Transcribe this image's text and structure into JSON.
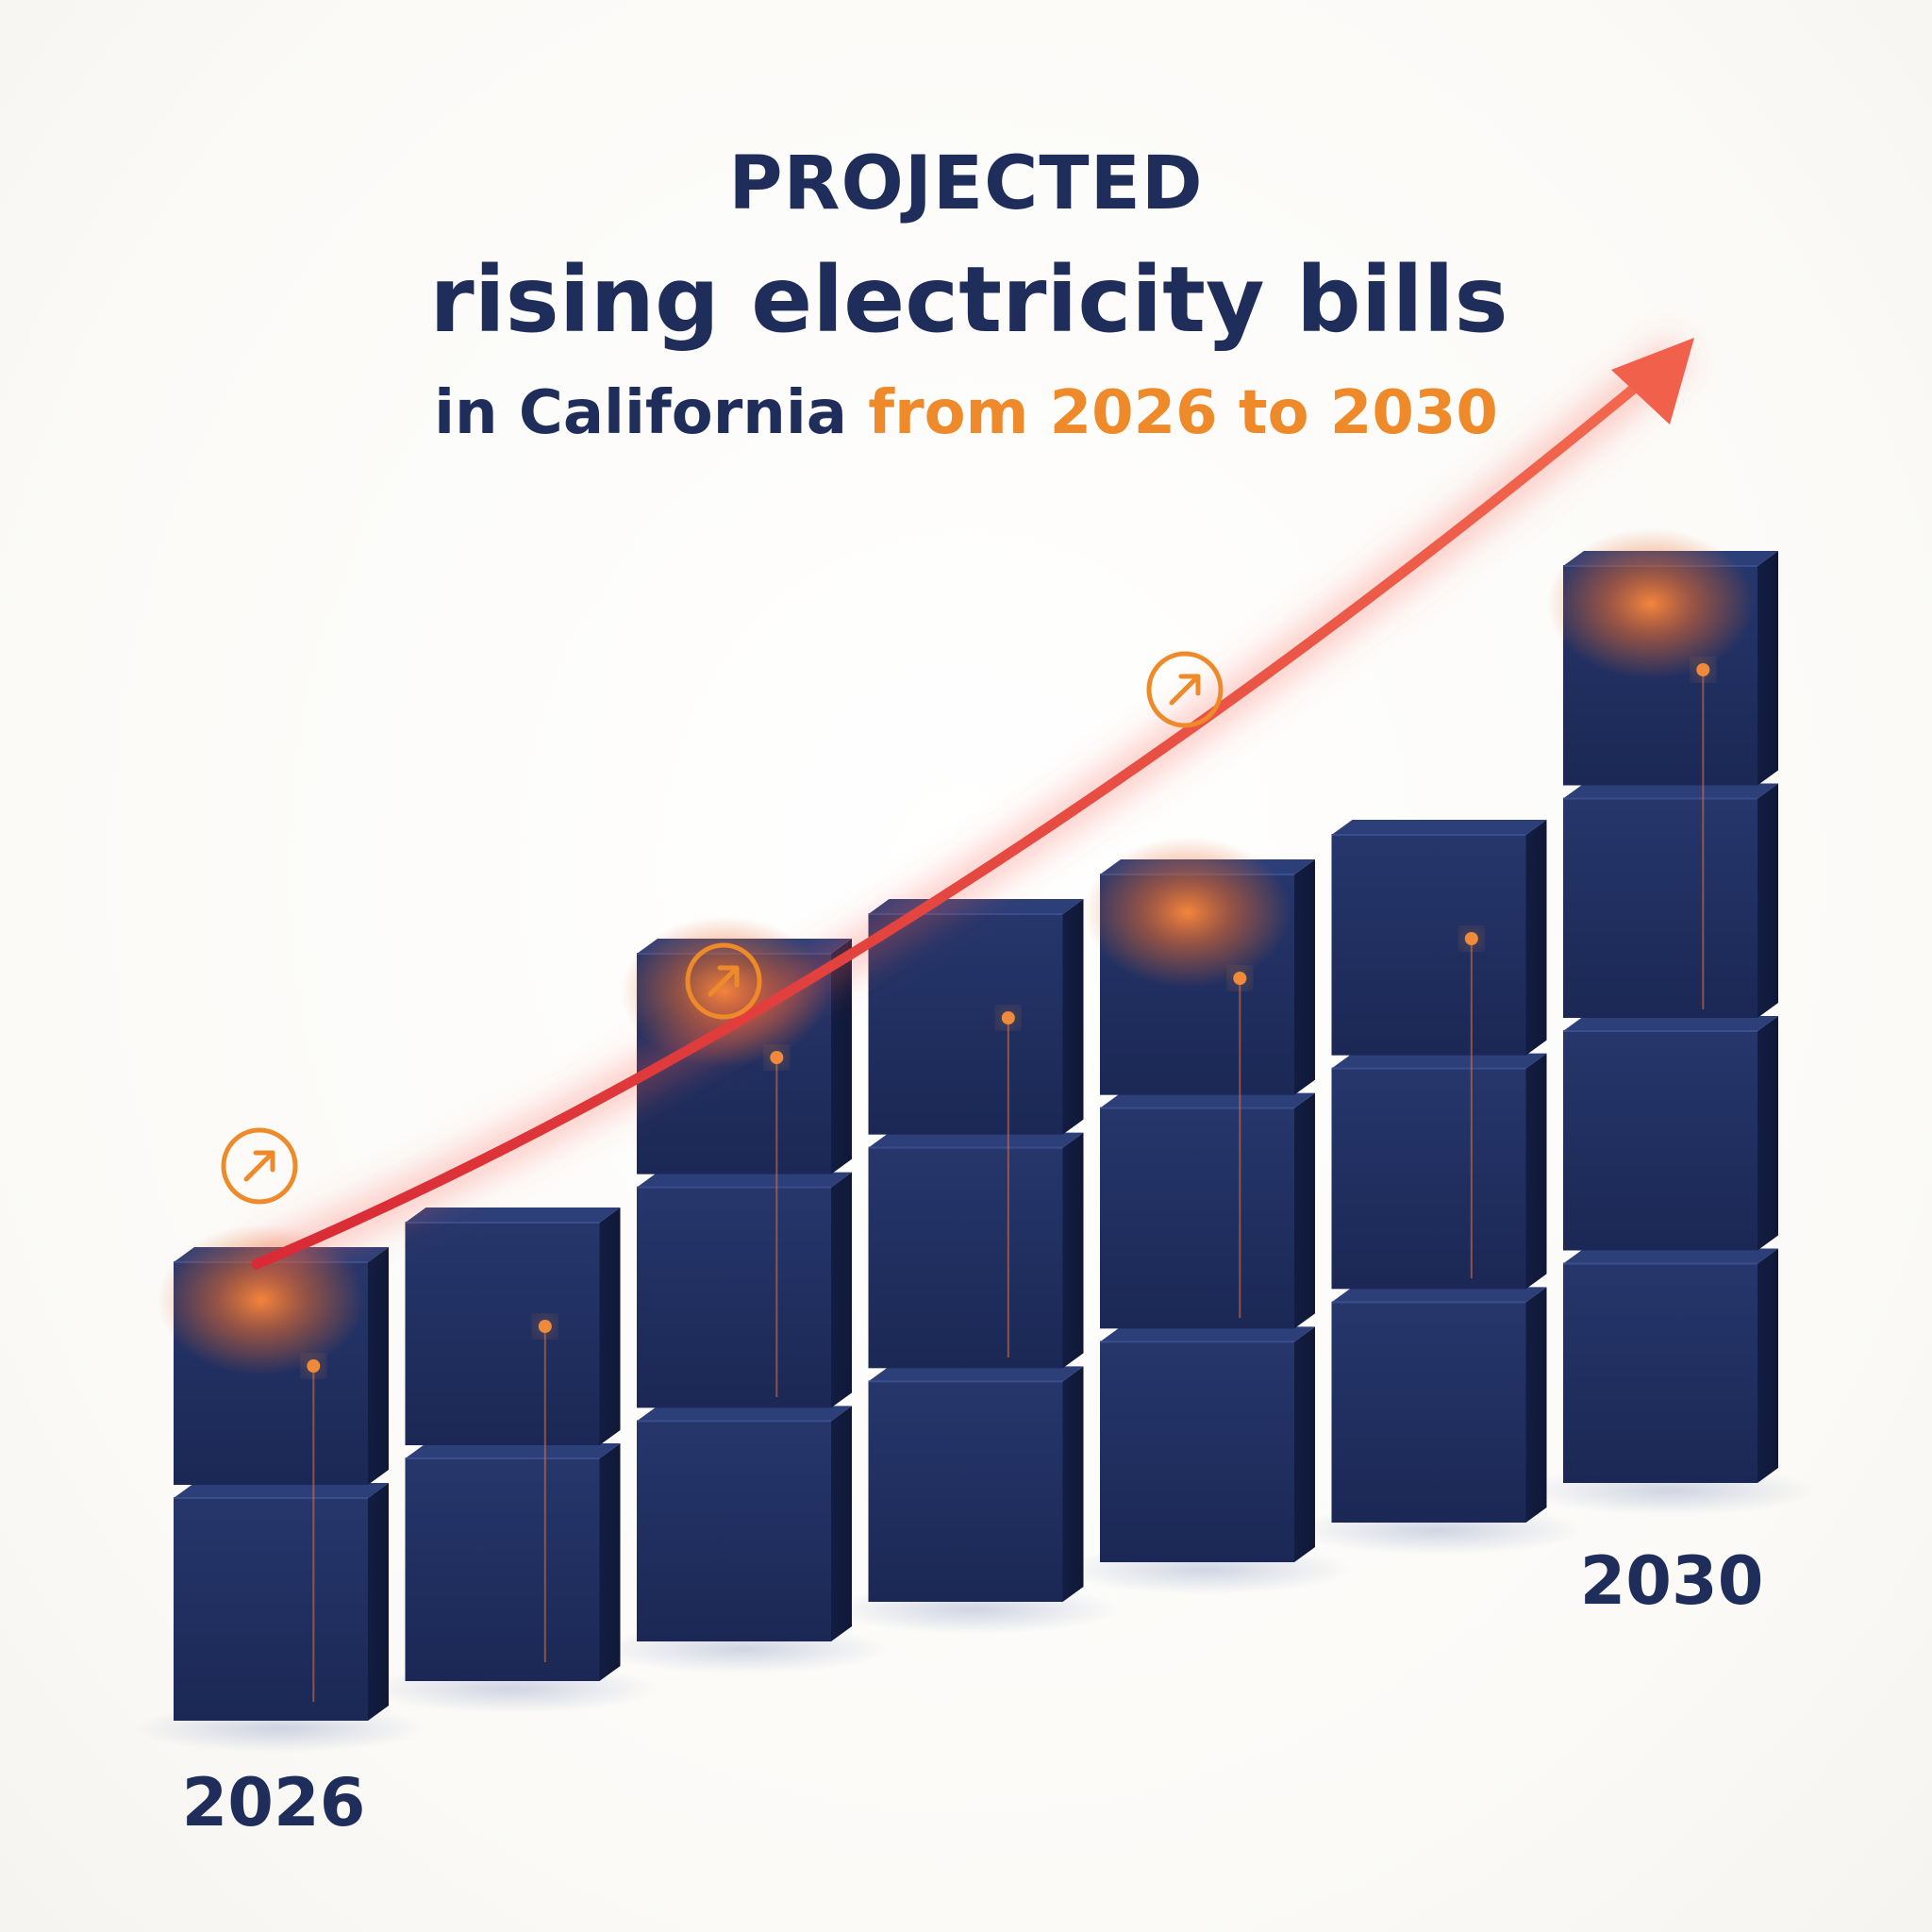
{
  "header": {
    "line1": "PROJECTED",
    "line2": "rising electricity bills",
    "line3_main": "in California",
    "line3_accent": "from 2026 to 2030"
  },
  "colors": {
    "title": "#1f2d5a",
    "accent": "#ef8a2a",
    "bar": "#1f2d5a",
    "trend": "#e8413a"
  },
  "icons": [
    "trend-up-icon",
    "trend-up-icon",
    "trend-up-icon"
  ],
  "chart_data": {
    "type": "bar",
    "categories": [
      "2026",
      "",
      "",
      "",
      "",
      "",
      "2030"
    ],
    "values": [
      2,
      2,
      3,
      3,
      3,
      3,
      4
    ],
    "xlabel": "",
    "ylabel": "",
    "ylim": [
      0,
      4
    ],
    "grid": false,
    "trend": "rising",
    "tick_labels": {
      "first": "2026",
      "last": "2030"
    }
  }
}
